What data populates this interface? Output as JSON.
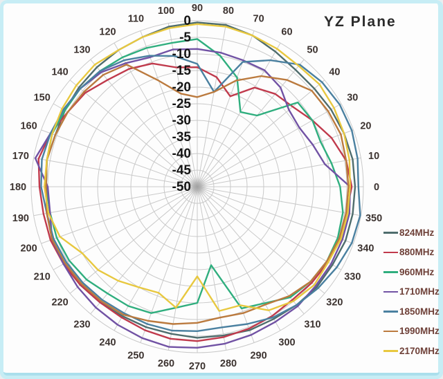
{
  "chart_data": {
    "type": "line",
    "subtype": "polar-radiation-pattern",
    "title": "YZ Plane",
    "grid": true,
    "legend_position": "right",
    "rlim": [
      0,
      -50
    ],
    "r_ticks": [
      0,
      -5,
      -10,
      -15,
      -20,
      -25,
      -30,
      -35,
      -40,
      -45,
      -50
    ],
    "angles_deg": [
      0,
      10,
      20,
      30,
      40,
      50,
      60,
      70,
      80,
      90,
      100,
      110,
      120,
      130,
      140,
      150,
      160,
      170,
      180,
      190,
      200,
      210,
      220,
      230,
      240,
      250,
      260,
      270,
      280,
      290,
      300,
      310,
      320,
      330,
      340,
      350
    ],
    "series": [
      {
        "name": "824MHz",
        "color": "#4f6d6d",
        "values": [
          -2.5,
          -2.5,
          -3,
          -3.5,
          -4,
          -4,
          -3,
          -1.5,
          -0.5,
          -0.5,
          -1,
          -2,
          -2.5,
          -3,
          -3.5,
          -4,
          -4.5,
          -4,
          -4.5,
          -4,
          -3.5,
          -3.5,
          -4,
          -4.5,
          -5,
          -5,
          -5,
          -4.5,
          -4.5,
          -4,
          -4,
          -3.5,
          -3,
          -3,
          -2.5,
          -2.5
        ]
      },
      {
        "name": "880MHz",
        "color": "#c03a4c",
        "values": [
          -3.5,
          -4.5,
          -7,
          -10,
          -12.5,
          -13.5,
          -15.5,
          -21,
          -16.5,
          -14,
          -13.5,
          -10.5,
          -9,
          -8,
          -6,
          -5,
          -3,
          -1.5,
          -2.5,
          -3,
          -3,
          -3.5,
          -4,
          -4.5,
          -4.5,
          -4,
          -3.5,
          -3.5,
          -4,
          -4.5,
          -5,
          -5.5,
          -5,
          -4.5,
          -4.5,
          -4.5
        ]
      },
      {
        "name": "960MHz",
        "color": "#2fae7e",
        "values": [
          -7,
          -9,
          -10.5,
          -10,
          -10.5,
          -22,
          -24,
          -15,
          -10,
          -5.5,
          -6,
          -5.5,
          -5,
          -4.5,
          -4,
          -4,
          -3.5,
          -4,
          -4.5,
          -5,
          -5,
          -5.5,
          -6.5,
          -8,
          -8.5,
          -9.5,
          -13,
          -15,
          -26,
          -11,
          -9.5,
          -6.5,
          -5.5,
          -5,
          -5,
          -5.5
        ]
      },
      {
        "name": "1710MHz",
        "color": "#7152a4",
        "values": [
          -4,
          -11,
          -13,
          -14.5,
          -14,
          -11,
          -9.5,
          -9.5,
          -9,
          -8.5,
          -8,
          -8.5,
          -7,
          -5,
          -4,
          -3.5,
          -3,
          -0.5,
          -5,
          -5,
          -3.5,
          -3.5,
          -3,
          -2.5,
          -2,
          -1.5,
          -1,
          -1.5,
          -2,
          -2.5,
          -3,
          -3,
          -3.5,
          -3.5,
          -3.5,
          -3.5
        ]
      },
      {
        "name": "1850MHz",
        "color": "#4a80a0",
        "values": [
          -1.5,
          -1,
          -0.5,
          -0.5,
          -1,
          -2,
          -6,
          -10,
          -21,
          -13,
          -10,
          -8,
          -6,
          -4.5,
          -4,
          -3.5,
          -3,
          -2.5,
          -3,
          -4,
          -4,
          -4.5,
          -5,
          -5.5,
          -6,
          -6,
          -6,
          -6.5,
          -7,
          -6,
          -4.5,
          -3.5,
          -2.5,
          -1.5,
          -0.5,
          -0.2
        ]
      },
      {
        "name": "1990MHz",
        "color": "#bb7a3e",
        "values": [
          -4.5,
          -4.5,
          -4,
          -4.5,
          -5,
          -8,
          -11.5,
          -16,
          -21,
          -23,
          -21.5,
          -16,
          -7.5,
          -6,
          -5.5,
          -5,
          -4.5,
          -4,
          -4.5,
          -4,
          -3.5,
          -4,
          -4.5,
          -5,
          -5.5,
          -7,
          -8,
          -9,
          -10,
          -9.5,
          -9,
          -7,
          -5.5,
          -5,
          -4.5,
          -4.5
        ]
      },
      {
        "name": "2170MHz",
        "color": "#e8c83f",
        "values": [
          -4,
          -3.5,
          -3,
          -2.5,
          -2,
          -2.5,
          -2,
          -1.5,
          -1,
          -1,
          -1.5,
          -2,
          -2.5,
          -2,
          -2.5,
          -3,
          -3.5,
          -4,
          -4,
          -4.5,
          -6,
          -10,
          -11,
          -13,
          -15,
          -16,
          -13,
          -23,
          -12,
          -12,
          -7,
          -5,
          -4,
          -4.5,
          -4,
          -4
        ]
      }
    ],
    "colors": {
      "grid": "#c9c9c9",
      "frame_border": "#c7edf5",
      "frame_border_bottom": "#aadfec",
      "angle_label": "#3c3330",
      "radial_label": "#151515",
      "legend_text": "#6e4038",
      "title_text": "#2b2b2b"
    }
  }
}
